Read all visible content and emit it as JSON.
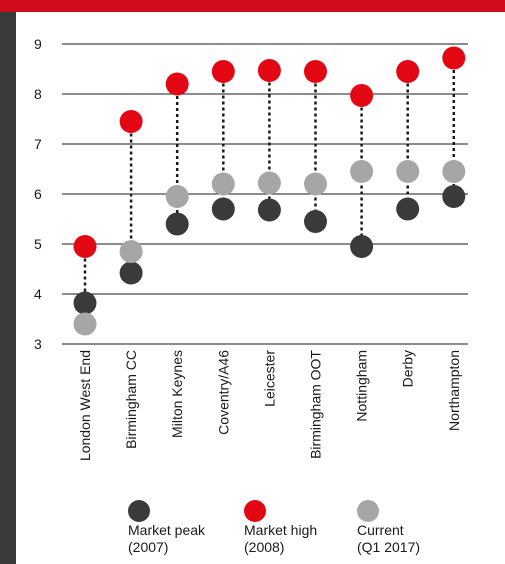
{
  "chart_data": {
    "type": "dot",
    "title": "",
    "xlabel": "",
    "ylabel": "",
    "ylim": [
      3,
      9
    ],
    "yticks": [
      3,
      4,
      5,
      6,
      7,
      8,
      9
    ],
    "categories": [
      "London West End",
      "Birmingham CC",
      "Milton Keynes",
      "Coventry/A46",
      "Leicester",
      "Birmingham OOT",
      "Nottingham",
      "Derby",
      "Northampton"
    ],
    "series": [
      {
        "key": "peak",
        "name": "Market peak\n(2007)",
        "color": "#3a3a3a",
        "values": [
          3.82,
          4.42,
          5.4,
          5.7,
          5.68,
          5.45,
          4.95,
          5.7,
          5.95
        ]
      },
      {
        "key": "high",
        "name": "Market high\n(2008)",
        "color": "#e30613",
        "values": [
          4.95,
          7.45,
          8.2,
          8.45,
          8.47,
          8.45,
          7.97,
          8.45,
          8.72
        ]
      },
      {
        "key": "current",
        "name": "Current\n(Q1 2017)",
        "color": "#a6a6a6",
        "values": [
          3.4,
          4.85,
          5.95,
          6.2,
          6.22,
          6.2,
          6.45,
          6.45,
          6.45
        ]
      }
    ],
    "legend_position": "bottom",
    "grid": true,
    "connector": "dotted"
  },
  "colors": {
    "brand_red": "#d10a1c",
    "side_band": "#3a3a3a"
  }
}
